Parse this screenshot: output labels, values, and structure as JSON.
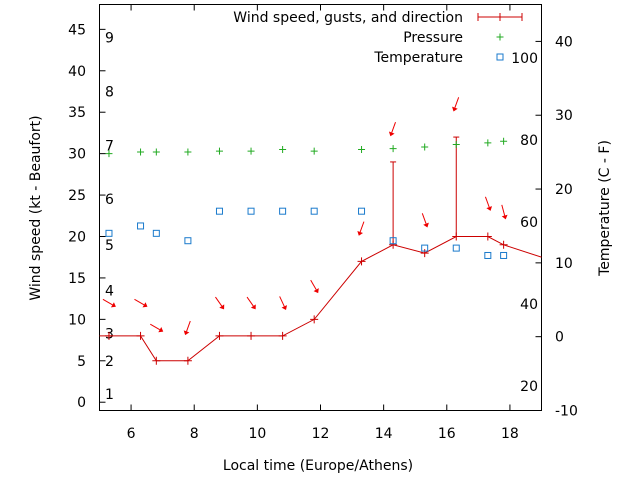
{
  "chart_data": {
    "type": "line",
    "xlabel": "Local time (Europe/Athens)",
    "ylabel_left": "Wind speed (kt - Beaufort)",
    "ylabel_right": "Temperature (C - F)",
    "xlim": [
      5,
      19
    ],
    "ylim_left": [
      -1,
      48
    ],
    "ylim_right": [
      -10,
      45
    ],
    "x_ticks": [
      "6",
      "8",
      "10",
      "12",
      "14",
      "16",
      "18"
    ],
    "y_left_ticks": [
      "0",
      "5",
      "10",
      "15",
      "20",
      "25",
      "30",
      "35",
      "40",
      "45"
    ],
    "y_right_ticks": [
      "-10",
      "0",
      "10",
      "20",
      "30",
      "40"
    ],
    "beaufort_labels": [
      "1",
      "2",
      "3",
      "4",
      "5",
      "6",
      "7",
      "8",
      "9"
    ],
    "fahrenheit_labels": [
      "20",
      "40",
      "60",
      "80",
      "100"
    ],
    "legend_position": "top-right",
    "colors": {
      "wind": "#cc0000",
      "arrow": "#ee0000",
      "pressure": "#22aa22",
      "temperature": "#1a7acc"
    },
    "series": [
      {
        "name": "Wind speed, gusts, and direction",
        "x": [
          4.6,
          5.3,
          6.3,
          6.8,
          7.8,
          8.8,
          9.8,
          10.8,
          11.8,
          13.3,
          14.3,
          15.3,
          16.3,
          17.3,
          17.8,
          19.0
        ],
        "y": [
          8,
          8,
          8,
          5,
          5,
          8,
          8,
          8,
          10,
          17,
          19,
          18,
          20,
          20,
          19,
          17.5
        ],
        "gusts": [
          {
            "x": 14.3,
            "from": 19,
            "to": 29
          },
          {
            "x": 16.3,
            "from": 20,
            "to": 32
          }
        ],
        "directions": [
          {
            "x": 5.3,
            "y": 12,
            "to_deg": 120
          },
          {
            "x": 6.3,
            "y": 12,
            "to_deg": 120
          },
          {
            "x": 6.8,
            "y": 9,
            "to_deg": 120
          },
          {
            "x": 7.8,
            "y": 9,
            "to_deg": 200
          },
          {
            "x": 8.8,
            "y": 12,
            "to_deg": 145
          },
          {
            "x": 9.8,
            "y": 12,
            "to_deg": 145
          },
          {
            "x": 10.8,
            "y": 12,
            "to_deg": 155
          },
          {
            "x": 11.8,
            "y": 14,
            "to_deg": 150
          },
          {
            "x": 13.3,
            "y": 21,
            "to_deg": 200
          },
          {
            "x": 14.3,
            "y": 33,
            "to_deg": 200
          },
          {
            "x": 15.3,
            "y": 22,
            "to_deg": 160
          },
          {
            "x": 16.3,
            "y": 36,
            "to_deg": 200
          },
          {
            "x": 17.3,
            "y": 24,
            "to_deg": 160
          },
          {
            "x": 17.8,
            "y": 23,
            "to_deg": 165
          }
        ]
      },
      {
        "name": "Pressure",
        "x": [
          5.3,
          6.3,
          6.8,
          7.8,
          8.8,
          9.8,
          10.8,
          11.8,
          13.3,
          14.3,
          15.3,
          16.3,
          17.3,
          17.8
        ],
        "y": [
          30,
          30.2,
          30.2,
          30.2,
          30.3,
          30.3,
          30.5,
          30.3,
          30.5,
          30.6,
          30.8,
          31.1,
          31.3,
          31.5
        ]
      },
      {
        "name": "Temperature",
        "x": [
          5.3,
          6.3,
          6.8,
          7.8,
          8.8,
          9.8,
          10.8,
          11.8,
          13.3,
          14.3,
          15.3,
          16.3,
          17.3,
          17.8
        ],
        "y": [
          14,
          15,
          14,
          13,
          17,
          17,
          17,
          17,
          17,
          13,
          12,
          12,
          11,
          11
        ]
      }
    ]
  }
}
